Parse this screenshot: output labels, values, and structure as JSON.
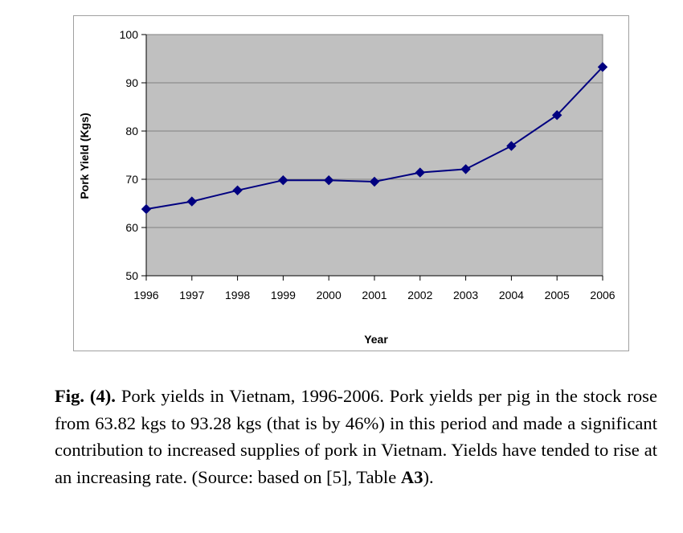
{
  "chart_data": {
    "type": "line",
    "title": "",
    "xlabel": "Year",
    "ylabel": "Pork Yield (Kgs)",
    "categories": [
      "1996",
      "1997",
      "1998",
      "1999",
      "2000",
      "2001",
      "2002",
      "2003",
      "2004",
      "2005",
      "2006"
    ],
    "series": [
      {
        "name": "Pork Yield",
        "values": [
          63.82,
          65.4,
          67.7,
          69.8,
          69.8,
          69.5,
          71.4,
          72.1,
          76.9,
          83.3,
          93.28
        ]
      }
    ],
    "ylim": [
      50,
      100
    ],
    "yticks": [
      50,
      60,
      70,
      80,
      90,
      100
    ],
    "grid": true,
    "colors": {
      "plot_bg": "#c0c0c0",
      "line": "#000080",
      "marker": "#000080",
      "grid": "#808080"
    }
  },
  "caption": {
    "label": "Fig. (4).",
    "text_before_bold": " Pork yields in Vietnam, 1996-2006. Pork yields per pig in the stock rose from 63.82 kgs to 93.28 kgs (that is by 46%) in this period and made a significant contribution to increased supplies of pork in Vietnam. Yields have tended to rise at an increasing rate. (Source: based on [5], Table ",
    "bold_ref": "A3",
    "text_after_bold": ")."
  }
}
